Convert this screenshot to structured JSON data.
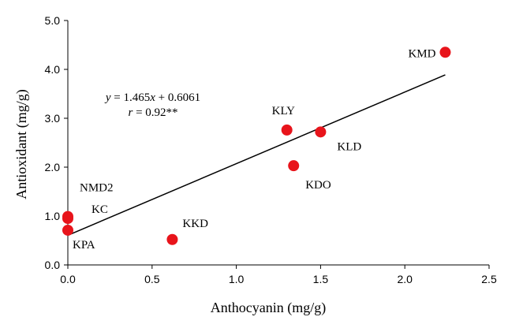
{
  "chart_data": {
    "type": "scatter",
    "title": "",
    "xlabel": "Anthocyanin (mg/g)",
    "ylabel": "Antioxidant (mg/g)",
    "xlim": [
      0,
      2.5
    ],
    "ylim": [
      0,
      5.0
    ],
    "xticks": [
      "0.0",
      "0.5",
      "1.0",
      "1.5",
      "2.0",
      "2.5"
    ],
    "yticks": [
      "0.0",
      "1.0",
      "2.0",
      "3.0",
      "4.0",
      "5.0"
    ],
    "grid": false,
    "marker_color": "#e8141b",
    "points": [
      {
        "label": "KMD",
        "x": 2.24,
        "y": 4.35
      },
      {
        "label": "KLY",
        "x": 1.3,
        "y": 2.76
      },
      {
        "label": "KLD",
        "x": 1.5,
        "y": 2.72
      },
      {
        "label": "KDO",
        "x": 1.34,
        "y": 2.03
      },
      {
        "label": "KKD",
        "x": 0.62,
        "y": 0.52
      },
      {
        "label": "NMD2",
        "x": 0.0,
        "y": 0.99
      },
      {
        "label": "KC",
        "x": 0.0,
        "y": 0.95
      },
      {
        "label": "KPA",
        "x": 0.0,
        "y": 0.71
      }
    ],
    "regression": {
      "slope": 1.465,
      "intercept": 0.6061,
      "x_range": [
        0,
        2.24
      ],
      "equation_text": "y = 1.465x + 0.6061",
      "r_text": "r = 0.92**"
    }
  }
}
